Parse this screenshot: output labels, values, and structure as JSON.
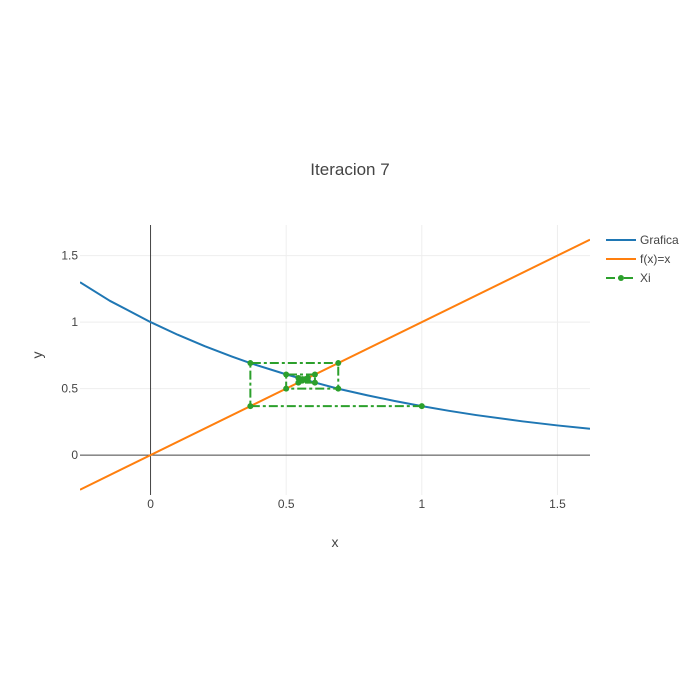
{
  "chart_data": {
    "type": "line",
    "title": "Iteracion 7",
    "xlabel": "x",
    "ylabel": "y",
    "xlim": [
      -0.26,
      1.62
    ],
    "ylim": [
      -0.3,
      1.73
    ],
    "x_ticks": [
      0,
      0.5,
      1,
      1.5
    ],
    "x_tick_labels": [
      "0",
      "0.5",
      "1",
      "1.5"
    ],
    "y_ticks": [
      0,
      0.5,
      1,
      1.5
    ],
    "y_tick_labels": [
      "0",
      "0.5",
      "1",
      "1.5"
    ],
    "grid": true,
    "legend_position": "top-right",
    "series": [
      {
        "name": "Grafica",
        "color": "#1f77b4",
        "style": "solid",
        "x": [
          -0.26,
          -0.15,
          0,
          0.1,
          0.2,
          0.3,
          0.37,
          0.5,
          0.6,
          0.69,
          0.8,
          0.9,
          1.0,
          1.1,
          1.2,
          1.37,
          1.5,
          1.62
        ],
        "y": [
          1.3,
          1.16,
          1.0,
          0.905,
          0.819,
          0.741,
          0.69,
          0.607,
          0.549,
          0.5,
          0.449,
          0.407,
          0.368,
          0.333,
          0.301,
          0.254,
          0.223,
          0.198
        ]
      },
      {
        "name": "f(x)=x",
        "color": "#ff7f0e",
        "style": "solid",
        "x": [
          -0.26,
          1.62
        ],
        "y": [
          -0.26,
          1.62
        ]
      },
      {
        "name": "Xi",
        "color": "#2ca02c",
        "style": "dashdot",
        "markers": true,
        "x": [
          1.0,
          0.368,
          0.368,
          0.692,
          0.692,
          0.5,
          0.5,
          0.606,
          0.606,
          0.545,
          0.545,
          0.58,
          0.58,
          0.56,
          0.56,
          0.571
        ],
        "y": [
          0.368,
          0.368,
          0.692,
          0.692,
          0.5,
          0.5,
          0.606,
          0.606,
          0.545,
          0.545,
          0.58,
          0.58,
          0.56,
          0.56,
          0.571,
          0.571
        ]
      }
    ]
  }
}
